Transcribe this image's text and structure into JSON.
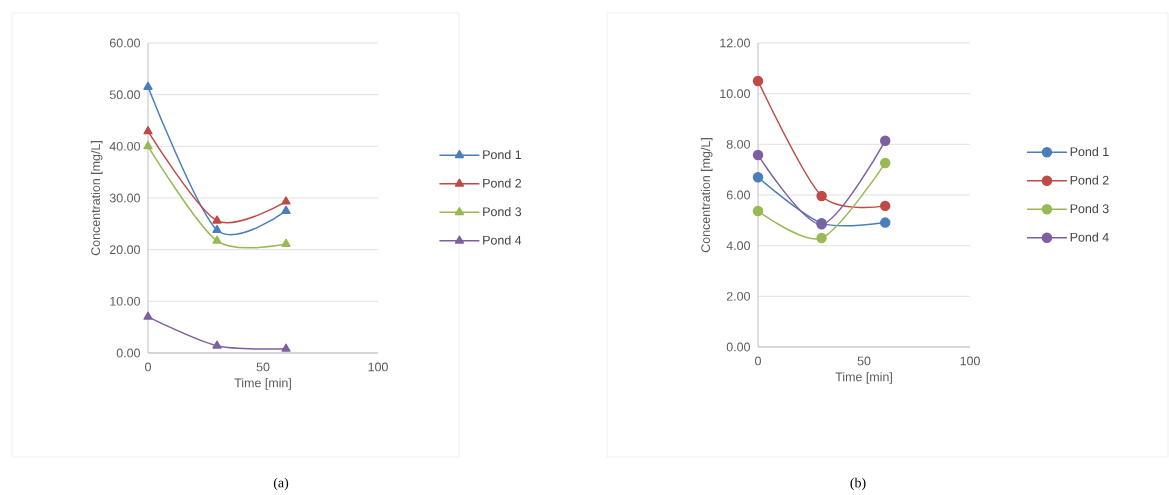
{
  "chart_data": [
    {
      "type": "line",
      "xlabel": "Time [min]",
      "ylabel": "Concentration  [mg/L]",
      "annotations": [
        "(a)"
      ],
      "x": [
        0,
        30,
        60
      ],
      "xlim": [
        0,
        100
      ],
      "xticks": [
        0,
        50,
        100
      ],
      "ylim": [
        0,
        60
      ],
      "yticks": [
        {
          "value": 0,
          "label": "0.00"
        },
        {
          "value": 10,
          "label": "10.00"
        },
        {
          "value": 20,
          "label": "20.00"
        },
        {
          "value": 30,
          "label": "30.00"
        },
        {
          "value": 40,
          "label": "40.00"
        },
        {
          "value": 50,
          "label": "50.00"
        },
        {
          "value": 60,
          "label": "60.00"
        }
      ],
      "grid": "y",
      "legend": "right",
      "marker": "triangle",
      "line_style": "solid",
      "series": [
        {
          "name": "Pond 1",
          "color": "#4a7ebb",
          "values": [
            51.5,
            23.8,
            27.5
          ]
        },
        {
          "name": "Pond 2",
          "color": "#be4b48",
          "values": [
            42.9,
            25.6,
            29.3
          ]
        },
        {
          "name": "Pond 3",
          "color": "#98b954",
          "values": [
            40.0,
            21.7,
            21.1
          ]
        },
        {
          "name": "Pond 4",
          "color": "#7d60a0",
          "values": [
            7.0,
            1.4,
            0.8
          ]
        }
      ]
    },
    {
      "type": "line",
      "xlabel": "Time [min]",
      "ylabel": "Concentration  [mg/L]",
      "annotations": [
        "(b)"
      ],
      "x": [
        0,
        30,
        60
      ],
      "xlim": [
        0,
        100
      ],
      "xticks": [
        0,
        50,
        100
      ],
      "ylim": [
        0,
        12
      ],
      "yticks": [
        {
          "value": 0,
          "label": "0.00"
        },
        {
          "value": 2,
          "label": "2.00"
        },
        {
          "value": 4,
          "label": "4.00"
        },
        {
          "value": 6,
          "label": "6.00"
        },
        {
          "value": 8,
          "label": "8.00"
        },
        {
          "value": 10,
          "label": "10.00"
        },
        {
          "value": 12,
          "label": "12.00"
        }
      ],
      "grid": "y",
      "legend": "right",
      "marker": "circle",
      "line_style": "solid",
      "series": [
        {
          "name": "Pond 1",
          "color": "#4a7ebb",
          "values": [
            6.7,
            4.89,
            4.91
          ]
        },
        {
          "name": "Pond 2",
          "color": "#be4b48",
          "values": [
            10.5,
            5.96,
            5.57
          ]
        },
        {
          "name": "Pond 3",
          "color": "#98b954",
          "values": [
            5.37,
            4.3,
            7.26
          ]
        },
        {
          "name": "Pond 4",
          "color": "#7d60a0",
          "values": [
            7.58,
            4.84,
            8.14
          ]
        }
      ]
    }
  ]
}
